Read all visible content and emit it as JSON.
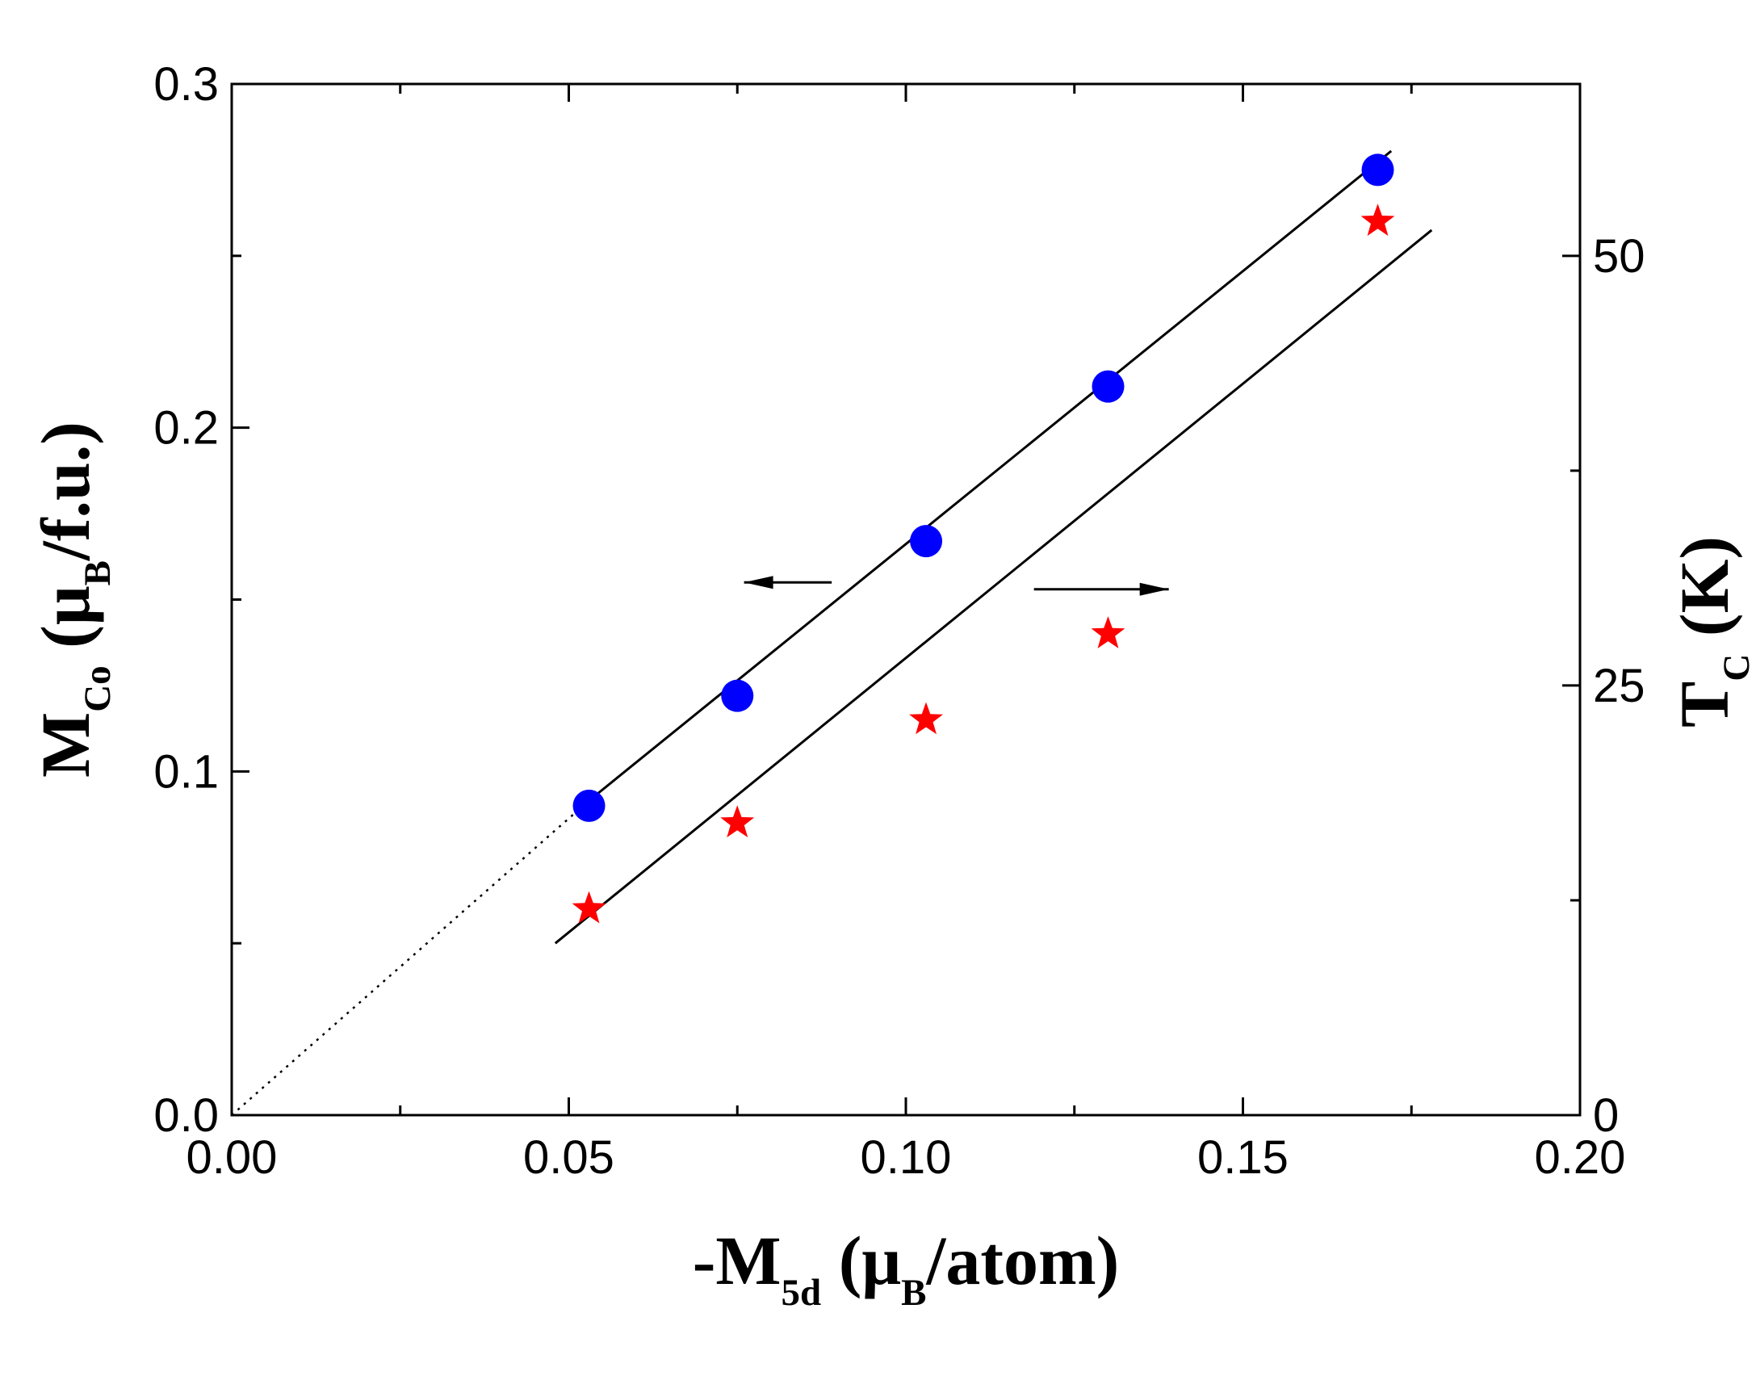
{
  "chart_data": {
    "type": "scatter",
    "x_axis": {
      "label_parts": [
        "-M",
        "5d",
        " (μ",
        "B",
        "/atom)"
      ],
      "range": [
        0.0,
        0.2
      ],
      "major_ticks": [
        0.0,
        0.05,
        0.1,
        0.15,
        0.2
      ],
      "tick_labels": [
        "0.00",
        "0.05",
        "0.10",
        "0.15",
        "0.20"
      ],
      "minor_ticks": [
        0.025,
        0.075,
        0.125,
        0.175
      ]
    },
    "y_left_axis": {
      "label_parts": [
        "M",
        "Co",
        " (μ",
        "B",
        "/f.u.)"
      ],
      "range": [
        0.0,
        0.3
      ],
      "major_ticks": [
        0.0,
        0.1,
        0.2,
        0.3
      ],
      "tick_labels": [
        "0.0",
        "0.1",
        "0.2",
        "0.3"
      ],
      "minor_ticks": [
        0.05,
        0.15,
        0.25
      ]
    },
    "y_right_axis": {
      "label_parts": [
        "T",
        "C",
        " (K)"
      ],
      "range": [
        0,
        60
      ],
      "major_ticks": [
        0,
        25,
        50
      ],
      "tick_labels": [
        "0",
        "25",
        "50"
      ],
      "minor_ticks": [
        12.5,
        37.5
      ]
    },
    "series": [
      {
        "name": "M_Co",
        "axis": "left",
        "marker": "circle",
        "color": "#0000ff",
        "x": [
          0.053,
          0.075,
          0.103,
          0.13,
          0.17
        ],
        "y": [
          0.09,
          0.122,
          0.167,
          0.212,
          0.275
        ]
      },
      {
        "name": "T_C",
        "axis": "right",
        "marker": "star",
        "color": "#ff0000",
        "x": [
          0.053,
          0.075,
          0.103,
          0.13,
          0.17
        ],
        "y": [
          12.0,
          17.0,
          23.0,
          28.0,
          52.0
        ]
      }
    ],
    "fits": [
      {
        "name": "M_Co linear fit",
        "axis": "left",
        "x": [
          0.053,
          0.172
        ],
        "y": [
          0.0915,
          0.2805
        ],
        "style": "solid"
      },
      {
        "name": "M_Co extrapolation",
        "axis": "left",
        "x": [
          0.0,
          0.053
        ],
        "y": [
          0.0,
          0.0915
        ],
        "style": "dotted"
      },
      {
        "name": "T_C linear fit",
        "axis": "right",
        "x": [
          0.048,
          0.178
        ],
        "y": [
          10.0,
          51.5
        ],
        "style": "solid"
      }
    ],
    "annotations": [
      {
        "name": "left-axis-arrow",
        "direction": "left",
        "x_from": 0.089,
        "x_to": 0.076,
        "y": 0.155,
        "axis": "left"
      },
      {
        "name": "right-axis-arrow",
        "direction": "right",
        "x_from": 0.119,
        "x_to": 0.139,
        "y": 0.153,
        "axis": "left"
      }
    ]
  }
}
